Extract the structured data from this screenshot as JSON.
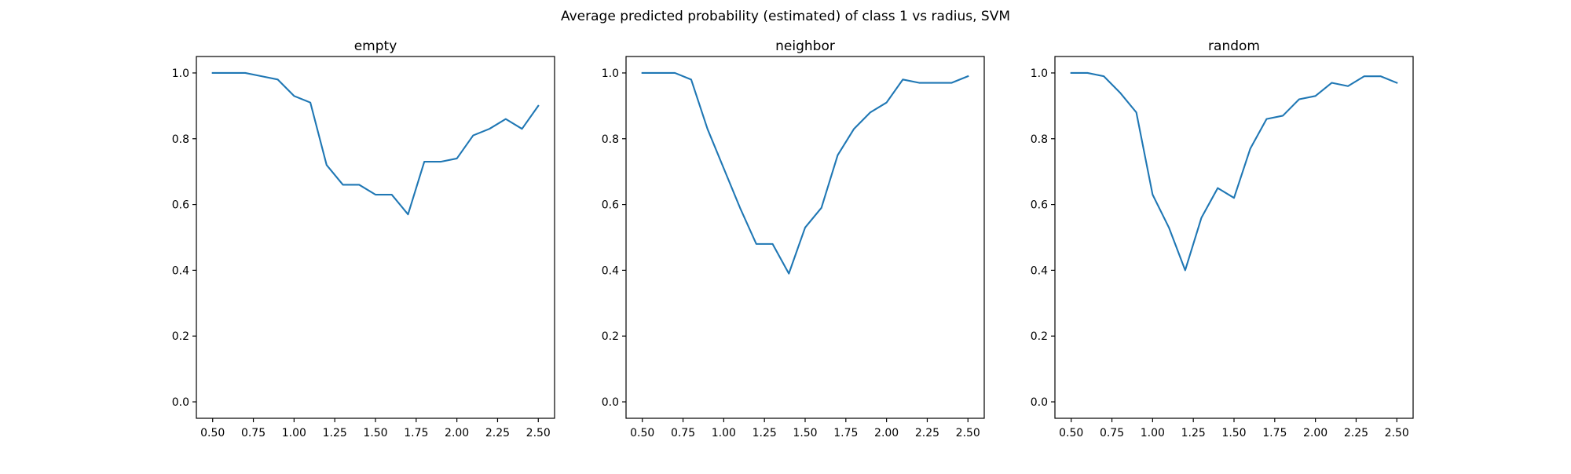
{
  "figure": {
    "title": "Average predicted probability (estimated) of class 1 vs radius, SVM"
  },
  "chart_data": [
    {
      "type": "line",
      "title": "empty",
      "xlabel": "",
      "ylabel": "",
      "xlim": [
        0.4,
        2.6
      ],
      "ylim": [
        -0.05,
        1.05
      ],
      "xticks": [
        "0.50",
        "0.75",
        "1.00",
        "1.25",
        "1.50",
        "1.75",
        "2.00",
        "2.25",
        "2.50"
      ],
      "yticks": [
        "0.0",
        "0.2",
        "0.4",
        "0.6",
        "0.8",
        "1.0"
      ],
      "grid": false,
      "color": "#1f77b4",
      "x": [
        0.5,
        0.6,
        0.7,
        0.8,
        0.9,
        1.0,
        1.1,
        1.2,
        1.3,
        1.4,
        1.5,
        1.6,
        1.7,
        1.8,
        1.9,
        2.0,
        2.1,
        2.2,
        2.3,
        2.4,
        2.5
      ],
      "values": [
        1.0,
        1.0,
        1.0,
        0.99,
        0.98,
        0.93,
        0.91,
        0.72,
        0.66,
        0.66,
        0.63,
        0.63,
        0.57,
        0.73,
        0.73,
        0.74,
        0.81,
        0.83,
        0.86,
        0.83,
        0.9
      ]
    },
    {
      "type": "line",
      "title": "neighbor",
      "xlabel": "",
      "ylabel": "",
      "xlim": [
        0.4,
        2.6
      ],
      "ylim": [
        -0.05,
        1.05
      ],
      "xticks": [
        "0.50",
        "0.75",
        "1.00",
        "1.25",
        "1.50",
        "1.75",
        "2.00",
        "2.25",
        "2.50"
      ],
      "yticks": [
        "0.0",
        "0.2",
        "0.4",
        "0.6",
        "0.8",
        "1.0"
      ],
      "grid": false,
      "color": "#1f77b4",
      "x": [
        0.5,
        0.6,
        0.7,
        0.8,
        0.9,
        1.0,
        1.1,
        1.2,
        1.3,
        1.4,
        1.5,
        1.6,
        1.7,
        1.8,
        1.9,
        2.0,
        2.1,
        2.2,
        2.3,
        2.4,
        2.5
      ],
      "values": [
        1.0,
        1.0,
        1.0,
        0.98,
        0.83,
        0.71,
        0.59,
        0.48,
        0.48,
        0.39,
        0.53,
        0.59,
        0.75,
        0.83,
        0.88,
        0.91,
        0.98,
        0.97,
        0.97,
        0.97,
        0.99
      ]
    },
    {
      "type": "line",
      "title": "random",
      "xlabel": "",
      "ylabel": "",
      "xlim": [
        0.4,
        2.6
      ],
      "ylim": [
        -0.05,
        1.05
      ],
      "xticks": [
        "0.50",
        "0.75",
        "1.00",
        "1.25",
        "1.50",
        "1.75",
        "2.00",
        "2.25",
        "2.50"
      ],
      "yticks": [
        "0.0",
        "0.2",
        "0.4",
        "0.6",
        "0.8",
        "1.0"
      ],
      "grid": false,
      "color": "#1f77b4",
      "x": [
        0.5,
        0.6,
        0.7,
        0.8,
        0.9,
        1.0,
        1.1,
        1.2,
        1.3,
        1.4,
        1.5,
        1.6,
        1.7,
        1.8,
        1.9,
        2.0,
        2.1,
        2.2,
        2.3,
        2.4,
        2.5
      ],
      "values": [
        1.0,
        1.0,
        0.99,
        0.94,
        0.88,
        0.63,
        0.53,
        0.4,
        0.56,
        0.65,
        0.62,
        0.77,
        0.86,
        0.87,
        0.92,
        0.93,
        0.97,
        0.96,
        0.99,
        0.99,
        0.97
      ]
    }
  ]
}
